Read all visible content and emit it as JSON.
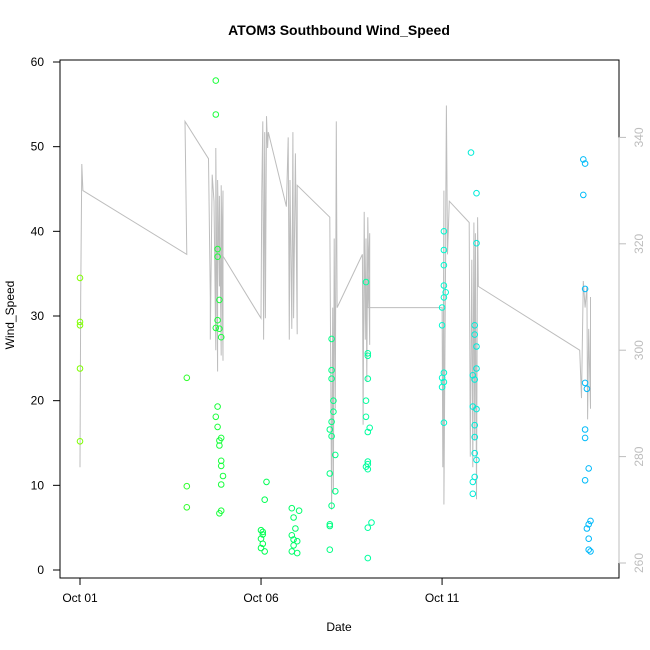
{
  "chart_data": {
    "type": "scatter",
    "title": "ATOM3 Southbound Wind_Speed",
    "xlabel": "Date",
    "ylabel": "Wind_Speed",
    "x_tick_labels": [
      "Oct 01",
      "Oct 06",
      "Oct 11"
    ],
    "x_tick_values": [
      1,
      6,
      11
    ],
    "xlim": [
      1,
      15.5
    ],
    "ylim": [
      0,
      60
    ],
    "y_ticks": [
      0,
      10,
      20,
      30,
      40,
      50,
      60
    ],
    "y2_ticks": [
      260,
      280,
      300,
      320,
      340
    ],
    "y2lim": [
      260,
      356
    ],
    "point_color_ramp": [
      "#7fff00",
      "#00ff4c",
      "#00ffcc",
      "#00b2ff"
    ],
    "line_color": "#bdbdbd",
    "series": [
      {
        "type": "points",
        "points": [
          [
            1.0,
            34.5
          ],
          [
            1.0,
            29.3
          ],
          [
            1.0,
            28.9
          ],
          [
            1.0,
            23.8
          ],
          [
            1.0,
            15.2
          ],
          [
            3.95,
            22.7
          ],
          [
            3.95,
            9.9
          ],
          [
            3.95,
            7.4
          ],
          [
            4.75,
            57.8
          ],
          [
            4.75,
            53.8
          ],
          [
            4.8,
            37.9
          ],
          [
            4.8,
            37.0
          ],
          [
            4.85,
            31.9
          ],
          [
            4.8,
            29.5
          ],
          [
            4.75,
            28.6
          ],
          [
            4.85,
            28.5
          ],
          [
            4.9,
            27.5
          ],
          [
            4.8,
            19.3
          ],
          [
            4.75,
            18.1
          ],
          [
            4.8,
            16.9
          ],
          [
            4.85,
            15.3
          ],
          [
            4.9,
            15.6
          ],
          [
            4.85,
            14.7
          ],
          [
            4.9,
            12.9
          ],
          [
            4.9,
            12.3
          ],
          [
            4.95,
            11.1
          ],
          [
            4.9,
            10.1
          ],
          [
            4.85,
            6.7
          ],
          [
            4.9,
            7.0
          ],
          [
            6.0,
            4.7
          ],
          [
            6.05,
            4.2
          ],
          [
            6.0,
            3.7
          ],
          [
            6.05,
            3.1
          ],
          [
            6.0,
            2.6
          ],
          [
            6.1,
            2.2
          ],
          [
            6.1,
            8.3
          ],
          [
            6.15,
            10.4
          ],
          [
            6.05,
            4.5
          ],
          [
            6.85,
            7.3
          ],
          [
            6.9,
            6.2
          ],
          [
            6.95,
            4.9
          ],
          [
            6.85,
            4.1
          ],
          [
            6.9,
            3.6
          ],
          [
            7.0,
            3.4
          ],
          [
            6.9,
            2.9
          ],
          [
            6.85,
            2.2
          ],
          [
            7.0,
            2.0
          ],
          [
            7.05,
            7.0
          ],
          [
            7.95,
            27.3
          ],
          [
            7.95,
            23.6
          ],
          [
            7.95,
            22.6
          ],
          [
            8.0,
            20.0
          ],
          [
            8.0,
            18.7
          ],
          [
            7.95,
            17.5
          ],
          [
            7.9,
            16.6
          ],
          [
            7.95,
            15.8
          ],
          [
            8.05,
            13.6
          ],
          [
            7.9,
            11.4
          ],
          [
            8.05,
            9.3
          ],
          [
            7.95,
            7.6
          ],
          [
            7.9,
            5.4
          ],
          [
            7.9,
            5.2
          ],
          [
            7.9,
            2.4
          ],
          [
            8.9,
            34.0
          ],
          [
            8.95,
            25.6
          ],
          [
            8.95,
            25.3
          ],
          [
            8.95,
            22.6
          ],
          [
            8.9,
            20.0
          ],
          [
            8.9,
            18.1
          ],
          [
            8.95,
            16.3
          ],
          [
            9.0,
            16.8
          ],
          [
            8.95,
            12.8
          ],
          [
            8.95,
            12.5
          ],
          [
            8.9,
            12.2
          ],
          [
            8.95,
            11.9
          ],
          [
            9.05,
            5.6
          ],
          [
            8.95,
            5.0
          ],
          [
            8.95,
            1.4
          ],
          [
            11.05,
            40.0
          ],
          [
            11.05,
            37.8
          ],
          [
            11.05,
            36.0
          ],
          [
            11.05,
            33.6
          ],
          [
            11.05,
            32.2
          ],
          [
            11.1,
            32.8
          ],
          [
            11.0,
            31.0
          ],
          [
            11.0,
            28.9
          ],
          [
            11.05,
            23.3
          ],
          [
            11.0,
            22.7
          ],
          [
            11.05,
            22.2
          ],
          [
            11.0,
            21.6
          ],
          [
            11.05,
            17.4
          ],
          [
            11.8,
            49.3
          ],
          [
            11.95,
            44.5
          ],
          [
            11.95,
            38.6
          ],
          [
            11.9,
            28.9
          ],
          [
            11.9,
            27.8
          ],
          [
            11.95,
            26.4
          ],
          [
            11.95,
            23.8
          ],
          [
            11.85,
            23.0
          ],
          [
            11.9,
            22.5
          ],
          [
            11.85,
            19.3
          ],
          [
            11.95,
            19.0
          ],
          [
            11.9,
            17.1
          ],
          [
            11.9,
            15.7
          ],
          [
            11.9,
            13.8
          ],
          [
            11.95,
            13.0
          ],
          [
            11.9,
            11.0
          ],
          [
            11.85,
            10.4
          ],
          [
            11.85,
            9.0
          ],
          [
            14.9,
            48.5
          ],
          [
            14.95,
            48.0
          ],
          [
            14.9,
            44.3
          ],
          [
            14.95,
            33.2
          ],
          [
            14.95,
            22.1
          ],
          [
            15.0,
            21.4
          ],
          [
            14.95,
            16.6
          ],
          [
            14.95,
            15.6
          ],
          [
            15.05,
            12.0
          ],
          [
            14.95,
            10.6
          ],
          [
            15.1,
            5.8
          ],
          [
            15.05,
            5.4
          ],
          [
            15.0,
            4.9
          ],
          [
            15.05,
            3.7
          ],
          [
            15.05,
            2.4
          ],
          [
            15.1,
            2.2
          ]
        ]
      },
      {
        "type": "line",
        "axis": "right",
        "points": [
          [
            1.0,
            278
          ],
          [
            1.02,
            310
          ],
          [
            1.05,
            335
          ],
          [
            1.08,
            330
          ],
          [
            3.95,
            318
          ],
          [
            3.9,
            343
          ],
          [
            4.55,
            336
          ],
          [
            4.6,
            310
          ],
          [
            4.6,
            302
          ],
          [
            4.65,
            333
          ],
          [
            4.7,
            328
          ],
          [
            4.75,
            300
          ],
          [
            4.75,
            338
          ],
          [
            4.8,
            296
          ],
          [
            4.8,
            332
          ],
          [
            4.85,
            312
          ],
          [
            4.85,
            329
          ],
          [
            4.9,
            299
          ],
          [
            4.9,
            331
          ],
          [
            4.95,
            298
          ],
          [
            4.95,
            330
          ],
          [
            4.92,
            318
          ],
          [
            6.0,
            306
          ],
          [
            6.02,
            330
          ],
          [
            6.05,
            343
          ],
          [
            6.07,
            302
          ],
          [
            6.1,
            341
          ],
          [
            6.12,
            306
          ],
          [
            6.15,
            344
          ],
          [
            6.18,
            338
          ],
          [
            6.2,
            341
          ],
          [
            6.7,
            327
          ],
          [
            6.75,
            340
          ],
          [
            6.78,
            302
          ],
          [
            6.8,
            332
          ],
          [
            6.85,
            304
          ],
          [
            6.88,
            341
          ],
          [
            6.9,
            306
          ],
          [
            6.95,
            337
          ],
          [
            7.0,
            303
          ],
          [
            7.0,
            331
          ],
          [
            7.9,
            325
          ],
          [
            7.95,
            270
          ],
          [
            7.98,
            308
          ],
          [
            8.0,
            273
          ],
          [
            8.02,
            321
          ],
          [
            8.05,
            289
          ],
          [
            8.08,
            343
          ],
          [
            8.1,
            308
          ],
          [
            8.8,
            318
          ],
          [
            8.82,
            286
          ],
          [
            8.85,
            326
          ],
          [
            8.88,
            302
          ],
          [
            8.9,
            321
          ],
          [
            8.92,
            294
          ],
          [
            8.95,
            325
          ],
          [
            9.0,
            301
          ],
          [
            9.0,
            322
          ],
          [
            8.95,
            308
          ],
          [
            11.0,
            308
          ],
          [
            11.02,
            278
          ],
          [
            11.05,
            330
          ],
          [
            11.05,
            271
          ],
          [
            11.1,
            320
          ],
          [
            11.1,
            325
          ],
          [
            11.12,
            346
          ],
          [
            11.15,
            318
          ],
          [
            11.2,
            328
          ],
          [
            11.75,
            324
          ],
          [
            11.78,
            280
          ],
          [
            11.82,
            317
          ],
          [
            11.85,
            278
          ],
          [
            11.88,
            324
          ],
          [
            11.9,
            283
          ],
          [
            11.92,
            322
          ],
          [
            11.95,
            272
          ],
          [
            11.98,
            325
          ],
          [
            12.0,
            312
          ],
          [
            14.8,
            300
          ],
          [
            14.85,
            291
          ],
          [
            14.9,
            313
          ],
          [
            14.95,
            308
          ],
          [
            15.0,
            312
          ],
          [
            15.02,
            287
          ],
          [
            15.05,
            304
          ],
          [
            15.1,
            289
          ],
          [
            15.1,
            310
          ]
        ]
      }
    ]
  }
}
